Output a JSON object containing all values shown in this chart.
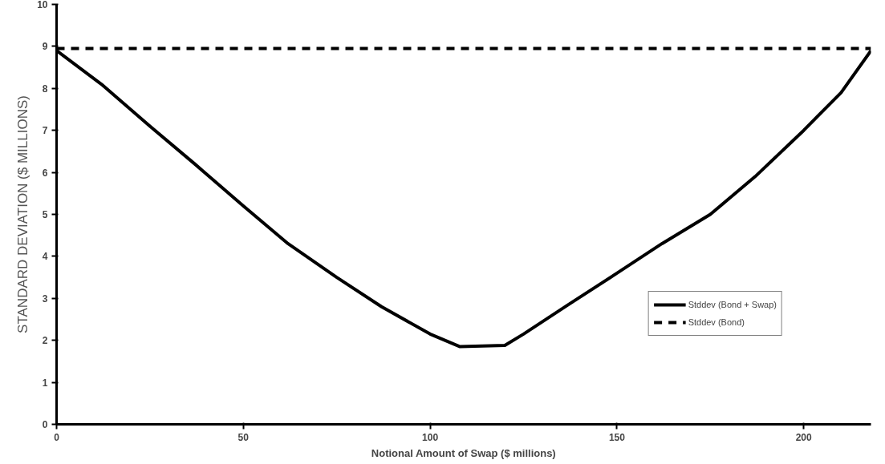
{
  "chart_data": {
    "type": "line",
    "xlabel": "Notional Amount of Swap ($ millions)",
    "ylabel": "STANDARD DEVIATION ($ MILLIONS)",
    "xlim": [
      0,
      218
    ],
    "xticks": [
      0,
      50,
      100,
      150,
      200
    ],
    "ylim": [
      0,
      10
    ],
    "yticks": [
      0,
      1,
      2,
      3,
      4,
      5,
      6,
      7,
      8,
      9,
      10
    ],
    "grid": false,
    "legend": "right",
    "marker": "none",
    "series": [
      {
        "name": "Stddev (Bond + Swap)",
        "color": "#000000",
        "line_style": "solid",
        "x": [
          0,
          12,
          25,
          37,
          50,
          62,
          75,
          87,
          100,
          108,
          120,
          125,
          137,
          150,
          162,
          175,
          187,
          200,
          210,
          218
        ],
        "values": [
          8.9,
          8.1,
          7.1,
          6.2,
          5.2,
          4.3,
          3.5,
          2.8,
          2.15,
          1.85,
          1.88,
          2.15,
          2.85,
          3.6,
          4.3,
          5.0,
          5.9,
          7.0,
          7.9,
          8.9
        ]
      },
      {
        "name": "Stddev (Bond)",
        "color": "#000000",
        "line_style": "dashed",
        "x": [
          0,
          218
        ],
        "values": [
          8.95,
          8.95
        ]
      }
    ]
  }
}
